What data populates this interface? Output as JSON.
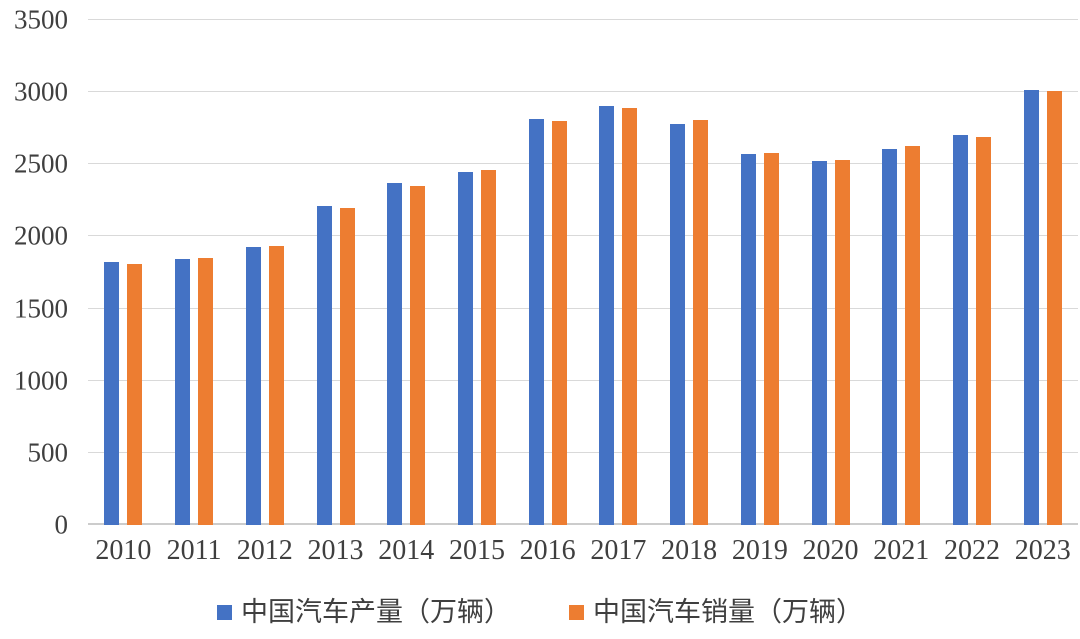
{
  "chart_data": {
    "type": "bar",
    "title": "",
    "xlabel": "",
    "ylabel": "",
    "categories": [
      "2010",
      "2011",
      "2012",
      "2013",
      "2014",
      "2015",
      "2016",
      "2017",
      "2018",
      "2019",
      "2020",
      "2021",
      "2022",
      "2023"
    ],
    "series": [
      {
        "name": "中国汽车产量（万辆）",
        "color": "#4472C4",
        "values": [
          1826,
          1842,
          1927,
          2212,
          2372,
          2450,
          2812,
          2902,
          2781,
          2572,
          2523,
          2608,
          2702,
          3016
        ]
      },
      {
        "name": "中国汽车销量（万辆）",
        "color": "#ED7D31",
        "values": [
          1806,
          1851,
          1931,
          2198,
          2349,
          2460,
          2803,
          2888,
          2808,
          2577,
          2531,
          2628,
          2686,
          3009
        ]
      }
    ],
    "ylim": [
      0,
      3500
    ],
    "yticks": [
      0,
      500,
      1000,
      1500,
      2000,
      2500,
      3000,
      3500
    ],
    "grid": true,
    "legend_position": "bottom"
  },
  "colors": {
    "gridline": "#D9D9D9",
    "axis_line": "#CCCCCC",
    "text": "#3F3F3F",
    "background": "#FFFFFF"
  }
}
